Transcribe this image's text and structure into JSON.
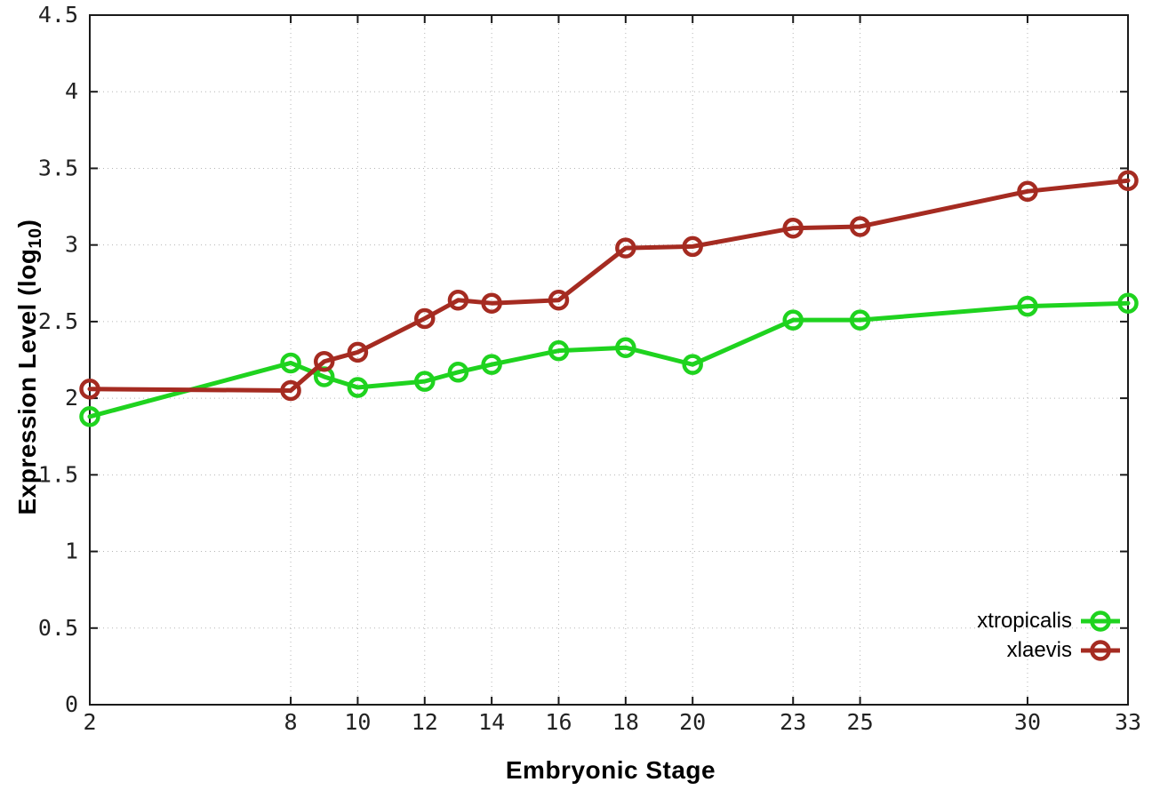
{
  "chart_data": {
    "type": "line",
    "title": "",
    "xlabel": "Embryonic Stage",
    "ylabel": "Expression Level (log10)",
    "ylabel_parts": {
      "prefix": "Expression Level (log",
      "sub": "10",
      "suffix": ")"
    },
    "x": [
      2,
      8,
      9,
      10,
      12,
      13,
      14,
      16,
      18,
      20,
      23,
      25,
      30,
      33
    ],
    "series": [
      {
        "name": "xtropicalis",
        "color": "#1fd31f",
        "values": [
          1.88,
          2.23,
          2.14,
          2.07,
          2.11,
          2.17,
          2.22,
          2.31,
          2.33,
          2.22,
          2.51,
          2.51,
          2.6,
          2.62
        ]
      },
      {
        "name": "xlaevis",
        "color": "#a52b21",
        "values": [
          2.06,
          2.05,
          2.24,
          2.3,
          2.52,
          2.64,
          2.62,
          2.64,
          2.98,
          2.99,
          3.11,
          3.12,
          3.35,
          3.42
        ]
      }
    ],
    "xlim": [
      2,
      33
    ],
    "ylim": [
      0,
      4.5
    ],
    "xticks": [
      2,
      8,
      10,
      12,
      14,
      16,
      18,
      20,
      23,
      25,
      30,
      33
    ],
    "xtick_labels": [
      "2",
      "8",
      "10",
      "12",
      "14",
      "16",
      "18",
      "20",
      "23",
      "25",
      "30",
      "33"
    ],
    "yticks": [
      0,
      0.5,
      1,
      1.5,
      2,
      2.5,
      3,
      3.5,
      4,
      4.5
    ],
    "ytick_labels": [
      "0",
      "0.5",
      "1",
      "1.5",
      "2",
      "2.5",
      "3",
      "3.5",
      "4",
      "4.5"
    ],
    "grid": true,
    "marker": "open-circle",
    "legend_position": "inside-bottom-right",
    "background_color": "#ffffff",
    "axis_color": "#1a1a1a",
    "grid_color": "#b5b5b5",
    "tick_label_color": "#222222"
  }
}
